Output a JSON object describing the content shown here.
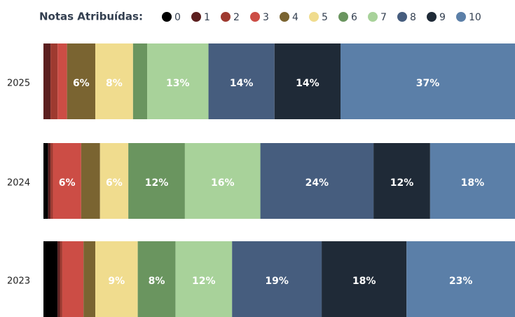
{
  "chart_data": {
    "type": "stacked-barh",
    "title": "Notas Atribuídas:",
    "categories": [
      "2025",
      "2024",
      "2023"
    ],
    "series": [
      {
        "name": "0",
        "color": "#000000",
        "values": [
          0,
          1,
          3
        ]
      },
      {
        "name": "1",
        "color": "#5c1f1f",
        "values": [
          1.5,
          0.5,
          0.5
        ]
      },
      {
        "name": "2",
        "color": "#9e3a30",
        "values": [
          1.5,
          0.5,
          0.5
        ]
      },
      {
        "name": "3",
        "color": "#cc4d45",
        "values": [
          2,
          6,
          4.5
        ],
        "value_labels": [
          null,
          "6%",
          null
        ]
      },
      {
        "name": "4",
        "color": "#7a6431",
        "values": [
          6,
          4,
          2.5
        ],
        "value_labels": [
          "6%",
          null,
          null
        ]
      },
      {
        "name": "5",
        "color": "#f0dc8e",
        "values": [
          8,
          6,
          9
        ],
        "value_labels": [
          "8%",
          "6%",
          "9%"
        ]
      },
      {
        "name": "6",
        "color": "#6a955f",
        "values": [
          3,
          12,
          8
        ],
        "value_labels": [
          null,
          "12%",
          "8%"
        ]
      },
      {
        "name": "7",
        "color": "#a8d29a",
        "values": [
          13,
          16,
          12
        ],
        "value_labels": [
          "13%",
          "16%",
          "12%"
        ]
      },
      {
        "name": "8",
        "color": "#465d7e",
        "values": [
          14,
          24,
          19
        ],
        "value_labels": [
          "14%",
          "24%",
          "19%"
        ]
      },
      {
        "name": "9",
        "color": "#1f2a37",
        "values": [
          14,
          12,
          18
        ],
        "value_labels": [
          "14%",
          "12%",
          "18%"
        ]
      },
      {
        "name": "10",
        "color": "#5b7fa8",
        "values": [
          37,
          18,
          23
        ],
        "value_labels": [
          "37%",
          "18%",
          "23%"
        ]
      }
    ],
    "xlim": [
      0,
      100
    ]
  }
}
